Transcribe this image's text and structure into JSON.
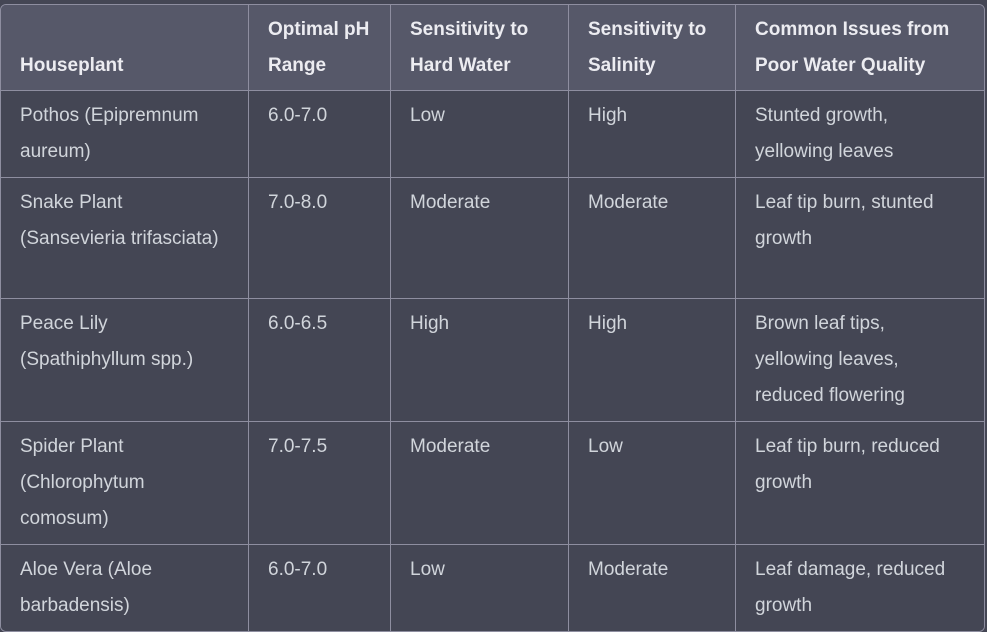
{
  "table": {
    "headers": [
      "Houseplant",
      "Optimal pH Range",
      "Sensitivity to Hard Water",
      "Sensitivity to Salinity",
      "Common Issues from Poor Water Quality"
    ],
    "rows": [
      [
        "Pothos (Epipremnum aureum)",
        "6.0-7.0",
        "Low",
        "High",
        "Stunted growth, yellowing leaves"
      ],
      [
        "Snake Plant (Sansevieria trifasciata)",
        "7.0-8.0",
        "Moderate",
        "Moderate",
        "Leaf tip burn, stunted growth"
      ],
      [
        "Peace Lily (Spathiphyllum spp.)",
        "6.0-6.5",
        "High",
        "High",
        "Brown leaf tips, yellowing leaves, reduced flowering"
      ],
      [
        "Spider Plant (Chlorophytum comosum)",
        "7.0-7.5",
        "Moderate",
        "Low",
        "Leaf tip burn, reduced growth"
      ],
      [
        "Aloe Vera (Aloe barbadensis)",
        "6.0-7.0",
        "Low",
        "Moderate",
        "Leaf damage, reduced growth"
      ]
    ]
  },
  "colors": {
    "page_background": "#444654",
    "header_background": "#565869",
    "border": "#8e8ea0",
    "header_text": "#ececf1",
    "body_text": "#d1d5db"
  }
}
